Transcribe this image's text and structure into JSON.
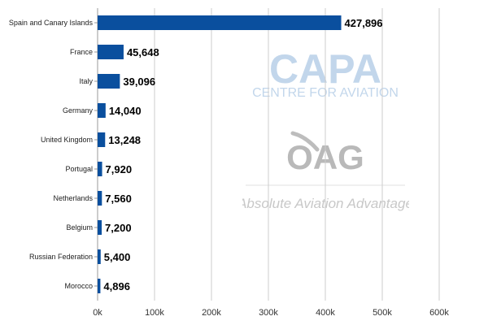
{
  "watermarks": {
    "capa": {
      "logo_text": "CAPA",
      "tagline": "CENTRE FOR AVIATION",
      "color": "#b8d0e8"
    },
    "oag": {
      "logo_text": "OAG",
      "tagline": "Absolute Aviation Advantage",
      "color": "#b9b9b9"
    }
  },
  "chart_data": {
    "type": "bar",
    "orientation": "horizontal",
    "title": "",
    "xlabel": "",
    "ylabel": "",
    "categories": [
      "Spain and Canary Islands",
      "France",
      "Italy",
      "Germany",
      "United Kingdom",
      "Portugal",
      "Netherlands",
      "Belgium",
      "Russian Federation",
      "Morocco"
    ],
    "values": [
      427896,
      45648,
      39096,
      14040,
      13248,
      7920,
      7560,
      7200,
      5400,
      4896
    ],
    "value_labels": [
      "427,896",
      "45,648",
      "39,096",
      "14,040",
      "13,248",
      "7,920",
      "7,560",
      "7,200",
      "5,400",
      "4,896"
    ],
    "xlim": [
      0,
      600000
    ],
    "xticks": [
      0,
      100000,
      200000,
      300000,
      400000,
      500000,
      600000
    ],
    "xtick_labels": [
      "0k",
      "100k",
      "200k",
      "300k",
      "400k",
      "500k",
      "600k"
    ],
    "grid": true,
    "legend": "none",
    "bar_color": "#0a4f9e",
    "grid_color": "#cccccc"
  }
}
